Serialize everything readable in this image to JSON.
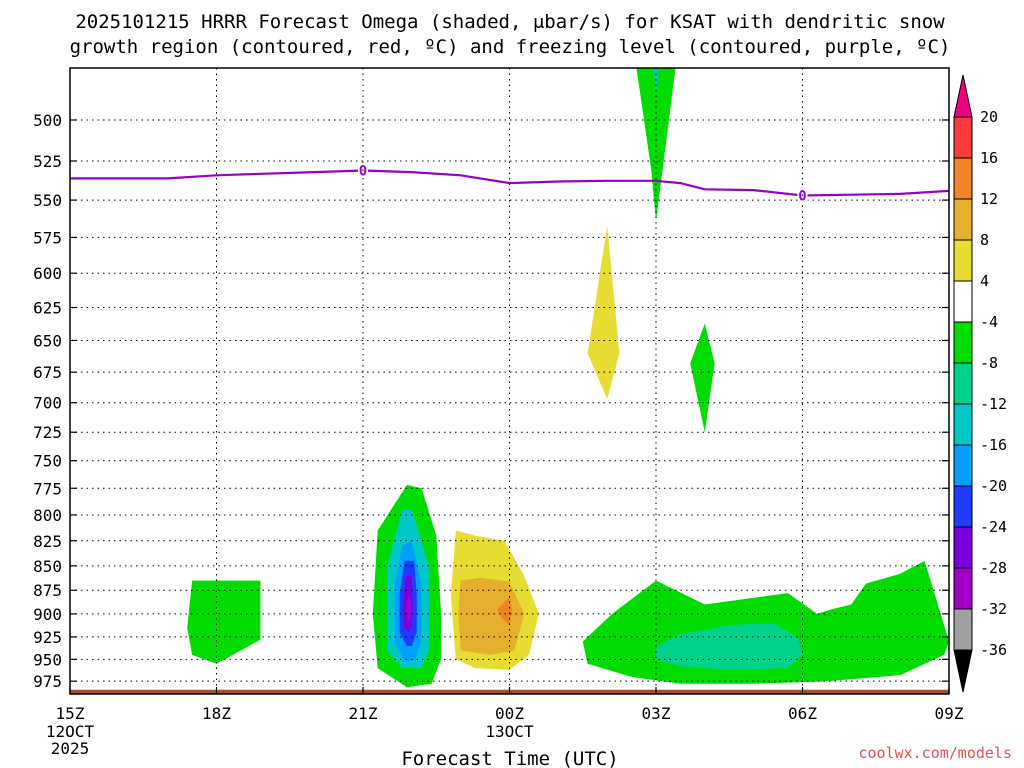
{
  "chart_data": {
    "type": "time-height-cross-section",
    "title_line1": "2025101215 HRRR Forecast Omega (shaded, μbar/s) for KSAT with dendritic snow",
    "title_line2": "growth region (contoured, red, ºC) and freezing level (contoured, purple, ºC)",
    "xlabel": "Forecast Time (UTC)",
    "credit": "coolwx.com/models",
    "x_ticks": [
      {
        "hour": 15,
        "label": "15Z"
      },
      {
        "hour": 18,
        "label": "18Z"
      },
      {
        "hour": 21,
        "label": "21Z"
      },
      {
        "hour": 24,
        "label": "00Z"
      },
      {
        "hour": 27,
        "label": "03Z"
      },
      {
        "hour": 30,
        "label": "06Z"
      },
      {
        "hour": 33,
        "label": "09Z"
      }
    ],
    "x_date_labels": [
      {
        "hour": 15,
        "lines": [
          "12OCT",
          "2025"
        ]
      },
      {
        "hour": 24,
        "lines": [
          "13OCT"
        ]
      }
    ],
    "xlim": [
      15,
      33
    ],
    "y_ticks": [
      500,
      525,
      550,
      575,
      600,
      625,
      650,
      675,
      700,
      725,
      750,
      775,
      800,
      825,
      850,
      875,
      900,
      925,
      950,
      975
    ],
    "ylim": [
      470,
      990
    ],
    "y_scale": "log-pressure",
    "freezing_level": {
      "label": "0",
      "label_points": [
        [
          21,
          531
        ],
        [
          30,
          547
        ]
      ],
      "points": [
        [
          15,
          536
        ],
        [
          16,
          536
        ],
        [
          17,
          536
        ],
        [
          18,
          534
        ],
        [
          19,
          533
        ],
        [
          20,
          532
        ],
        [
          21,
          531
        ],
        [
          22,
          532
        ],
        [
          23,
          534
        ],
        [
          24,
          539
        ],
        [
          25,
          538
        ],
        [
          26,
          537.5
        ],
        [
          27,
          537.5
        ],
        [
          27.5,
          539
        ],
        [
          28,
          543
        ],
        [
          29,
          543.5
        ],
        [
          30,
          547
        ],
        [
          31,
          546.5
        ],
        [
          32,
          546
        ],
        [
          33,
          544
        ]
      ]
    },
    "ground": {
      "pressure": 985,
      "color": "#a0522d"
    },
    "colorbar": {
      "levels": [
        -36,
        -32,
        -28,
        -24,
        -20,
        -16,
        -12,
        -8,
        -4,
        4,
        8,
        12,
        16,
        20
      ],
      "colors": [
        "#000000",
        "#a0a0a0",
        "#a000c8",
        "#7800dc",
        "#1e3cff",
        "#00a0ff",
        "#00c8c8",
        "#00d28c",
        "#00dc00",
        "#ffffff",
        "#e6dc32",
        "#e6af2d",
        "#f08228",
        "#fa3c3c",
        "#f00082"
      ]
    },
    "shaded_regions": [
      {
        "value_class": -8,
        "color": "#00dc00",
        "points": [
          [
            26.6,
            470
          ],
          [
            27.4,
            470
          ],
          [
            27.0,
            564
          ],
          [
            26.9,
            530
          ]
        ]
      },
      {
        "value_class": -12,
        "color": "#00c8c8",
        "points": [
          [
            26.95,
            470
          ],
          [
            27.05,
            470
          ],
          [
            27.0,
            485
          ]
        ]
      },
      {
        "value_class": 8,
        "color": "#e6dc32",
        "points": [
          [
            26.0,
            567
          ],
          [
            26.25,
            660
          ],
          [
            26.0,
            697
          ],
          [
            25.6,
            660
          ]
        ]
      },
      {
        "value_class": -8,
        "color": "#00dc00",
        "points": [
          [
            28.0,
            637
          ],
          [
            28.2,
            668
          ],
          [
            28.0,
            725
          ],
          [
            27.7,
            668
          ]
        ]
      },
      {
        "value_class": -8,
        "color": "#00dc00",
        "points": [
          [
            17.5,
            865
          ],
          [
            18.9,
            865
          ],
          [
            18.9,
            928
          ],
          [
            18.0,
            955
          ],
          [
            17.5,
            945
          ],
          [
            17.4,
            915
          ]
        ]
      },
      {
        "value_class": -8,
        "color": "#00dc00",
        "points": [
          [
            21.3,
            815
          ],
          [
            21.9,
            772
          ],
          [
            22.2,
            775
          ],
          [
            22.5,
            820
          ],
          [
            22.6,
            900
          ],
          [
            22.6,
            950
          ],
          [
            22.4,
            978
          ],
          [
            21.9,
            982
          ],
          [
            21.3,
            960
          ],
          [
            21.2,
            900
          ]
        ]
      },
      {
        "value_class": -12,
        "color": "#00c8c8",
        "points": [
          [
            21.5,
            850
          ],
          [
            21.8,
            795
          ],
          [
            22.0,
            795
          ],
          [
            22.35,
            850
          ],
          [
            22.35,
            940
          ],
          [
            22.2,
            960
          ],
          [
            21.8,
            960
          ],
          [
            21.5,
            940
          ]
        ]
      },
      {
        "value_class": -16,
        "color": "#00a0ff",
        "points": [
          [
            21.65,
            870
          ],
          [
            21.8,
            830
          ],
          [
            22.0,
            825
          ],
          [
            22.2,
            870
          ],
          [
            22.2,
            930
          ],
          [
            22.05,
            952
          ],
          [
            21.85,
            952
          ],
          [
            21.65,
            930
          ]
        ]
      },
      {
        "value_class": -20,
        "color": "#1e3cff",
        "points": [
          [
            21.75,
            880
          ],
          [
            21.85,
            845
          ],
          [
            22.05,
            845
          ],
          [
            22.1,
            880
          ],
          [
            22.1,
            920
          ],
          [
            22.0,
            935
          ],
          [
            21.9,
            935
          ],
          [
            21.75,
            920
          ]
        ]
      },
      {
        "value_class": -24,
        "color": "#7800dc",
        "points": [
          [
            21.82,
            890
          ],
          [
            21.88,
            860
          ],
          [
            22.0,
            860
          ],
          [
            22.02,
            895
          ],
          [
            22.0,
            915
          ],
          [
            21.93,
            920
          ],
          [
            21.84,
            915
          ]
        ]
      },
      {
        "value_class": -28,
        "color": "#a000c8",
        "points": [
          [
            21.88,
            895
          ],
          [
            21.93,
            880
          ],
          [
            21.98,
            885
          ],
          [
            21.97,
            905
          ],
          [
            21.9,
            910
          ]
        ]
      },
      {
        "value_class": 8,
        "color": "#e6dc32",
        "points": [
          [
            22.9,
            815
          ],
          [
            23.3,
            820
          ],
          [
            23.9,
            825
          ],
          [
            24.3,
            860
          ],
          [
            24.6,
            900
          ],
          [
            24.4,
            945
          ],
          [
            24.0,
            962
          ],
          [
            23.3,
            960
          ],
          [
            22.9,
            950
          ],
          [
            22.8,
            880
          ]
        ]
      },
      {
        "value_class": 12,
        "color": "#e6af2d",
        "points": [
          [
            23.0,
            865
          ],
          [
            23.4,
            862
          ],
          [
            24.0,
            866
          ],
          [
            24.3,
            900
          ],
          [
            24.1,
            940
          ],
          [
            23.6,
            945
          ],
          [
            23.0,
            940
          ],
          [
            22.95,
            900
          ]
        ]
      },
      {
        "value_class": 16,
        "color": "#f08228",
        "points": [
          [
            23.75,
            895
          ],
          [
            24.0,
            882
          ],
          [
            24.05,
            895
          ],
          [
            24.0,
            912
          ],
          [
            23.85,
            905
          ]
        ]
      },
      {
        "value_class": -8,
        "color": "#00dc00",
        "points": [
          [
            25.5,
            930
          ],
          [
            26.1,
            900
          ],
          [
            27.0,
            865
          ],
          [
            28.0,
            890
          ],
          [
            29.7,
            878
          ],
          [
            30.3,
            900
          ],
          [
            30.6,
            895
          ],
          [
            31.0,
            890
          ],
          [
            31.3,
            868
          ],
          [
            32.0,
            858
          ],
          [
            32.5,
            845
          ],
          [
            33.0,
            930
          ],
          [
            32.9,
            945
          ],
          [
            32.0,
            968
          ],
          [
            30.5,
            975
          ],
          [
            29.0,
            978
          ],
          [
            27.5,
            978
          ],
          [
            26.5,
            970
          ],
          [
            25.6,
            955
          ]
        ]
      },
      {
        "value_class": -12,
        "color": "#00d28c",
        "points": [
          [
            27.0,
            935
          ],
          [
            27.5,
            922
          ],
          [
            28.5,
            912
          ],
          [
            29.4,
            910
          ],
          [
            29.9,
            925
          ],
          [
            30.0,
            945
          ],
          [
            29.7,
            960
          ],
          [
            28.5,
            962
          ],
          [
            27.5,
            958
          ],
          [
            27.0,
            950
          ]
        ]
      }
    ]
  }
}
